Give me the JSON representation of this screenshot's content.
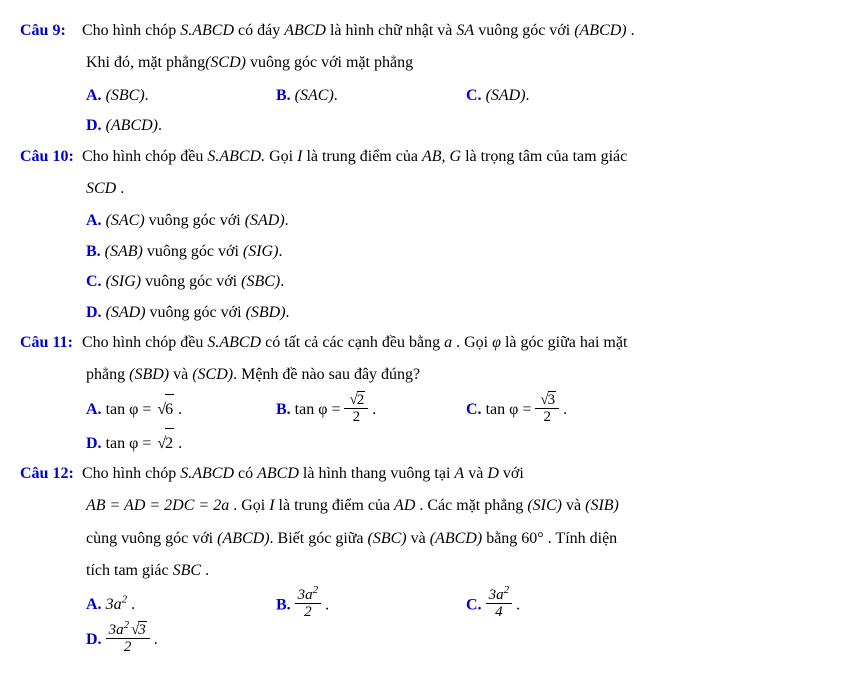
{
  "questions": [
    {
      "label": "Câu 9:",
      "p1_a": "Cho hình chóp ",
      "p1_b": " có đáy ",
      "p1_c": " là hình chữ nhật và ",
      "p1_d": " vuông góc với ",
      "s_abcd": "S.ABCD",
      "abcd": "ABCD",
      "sa": "SA",
      "paren_abcd": "(ABCD)",
      "dot": " .",
      "p2_a": "Khi đó, mặt phẳng",
      "p2_scd": "(SCD)",
      "p2_b": " vuông góc với mặt phẳng",
      "opts": [
        {
          "L": "A.",
          "t": "(SBC)",
          "dot": "."
        },
        {
          "L": "B.",
          "t": "(SAC)",
          "dot": "."
        },
        {
          "L": "C.",
          "t": "(SAD)",
          "dot": "."
        },
        {
          "L": "D.",
          "t": "(ABCD)",
          "dot": "."
        }
      ]
    },
    {
      "label": "Câu 10:",
      "p1_a": "Cho hình chóp đều ",
      "s_abcd": "S.ABCD.",
      "p1_b": " Gọi ",
      "I": "I",
      "p1_c": " là trung điểm của ",
      "ab_g": "AB, G",
      "p1_d": " là trọng tâm của tam giác",
      "scd": "SCD",
      "dot": " .",
      "opts": [
        {
          "L": "A.",
          "a": "(SAC)",
          "mid": " vuông góc với ",
          "b": "(SAD)",
          "dot": "."
        },
        {
          "L": "B.",
          "a": "(SAB)",
          "mid": " vuông góc với ",
          "b": "(SIG)",
          "dot": "."
        },
        {
          "L": "C.",
          "a": "(SIG)",
          "mid": " vuông góc với ",
          "b": "(SBC)",
          "dot": "."
        },
        {
          "L": "D.",
          "a": "(SAD)",
          "mid": " vuông góc với ",
          "b": "(SBD)",
          "dot": "."
        }
      ]
    },
    {
      "label": "Câu 11:",
      "p1_a": "Cho hình chóp đều ",
      "s_abcd": "S.ABCD",
      "p1_b": " có tất cả các cạnh đều bằng ",
      "a": "a",
      "p1_c": " . Gọi ",
      "phi": "φ",
      "p1_d": " là góc giữa hai mặt",
      "p2_a": "phẳng ",
      "sbd": "(SBD)",
      "p2_b": " và ",
      "scd": "(SCD)",
      "p2_c": ". Mệnh đề nào sau đây đúng?",
      "optA_L": "A.",
      "optA_pre": "tan φ = ",
      "optA_rad": "6",
      "optA_dot": " .",
      "optB_L": "B.",
      "optB_pre": "tan φ = ",
      "optB_num_rad": "2",
      "optB_den": "2",
      "optB_dot": " .",
      "optC_L": "C.",
      "optC_pre": "tan φ = ",
      "optC_num_rad": "3",
      "optC_den": "2",
      "optC_dot": " .",
      "optD_L": "D.",
      "optD_pre": "tan φ = ",
      "optD_rad": "2",
      "optD_dot": " ."
    },
    {
      "label": "Câu 12:",
      "p1_a": "Cho hình chóp ",
      "s_abcd": "S.ABCD",
      "p1_b": " có ",
      "abcd": "ABCD",
      "p1_c": " là hình thang vuông tại ",
      "Av": "A",
      "p1_d": " và ",
      "Dv": "D",
      "p1_e": " với",
      "p2_eq": "AB = AD = 2DC = 2a",
      "p2_a": " . Gọi ",
      "I": "I",
      "p2_b": " là trung điểm của ",
      "AD": "AD",
      "p2_c": " . Các mặt phẳng ",
      "sic": "(SIC)",
      "p2_d": " và ",
      "sib": "(SIB)",
      "p3_a": "cùng vuông góc với ",
      "abcd_p": "(ABCD)",
      "p3_b": ". Biết góc giữa ",
      "sbc": "(SBC)",
      "p3_c": " và ",
      "p3_d": " bằng ",
      "deg": "60°",
      "p3_e": " . Tính diện",
      "p4_a": "tích tam giác ",
      "SBC": "SBC",
      "p4_b": " .",
      "optA_L": "A.",
      "optA_v": "3a",
      "optA_sup": "2",
      "optA_dot": " .",
      "optB_L": "B.",
      "optB_num_a": "3a",
      "optB_num_sup": "2",
      "optB_den": "2",
      "optB_dot": " .",
      "optC_L": "C.",
      "optC_num_a": "3a",
      "optC_num_sup": "2",
      "optC_den": "4",
      "optC_dot": " .",
      "optD_L": "D.",
      "optD_num_a": "3a",
      "optD_num_sup": "2",
      "optD_rad": "3",
      "optD_den": "2",
      "optD_dot": " ."
    }
  ]
}
